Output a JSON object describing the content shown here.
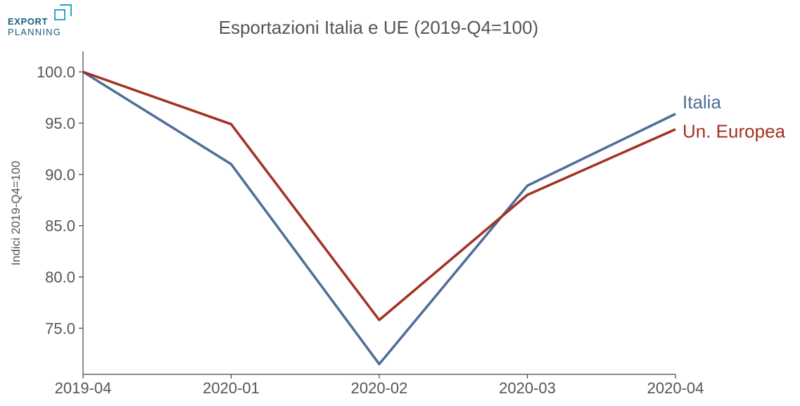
{
  "logo": {
    "line1": "EXPORT",
    "line2": "PLANNING",
    "accent": "#2aa8c4",
    "color": "#16607a"
  },
  "chart_data": {
    "type": "line",
    "title": "Esportazioni Italia e UE (2019-Q4=100)",
    "xlabel": "",
    "ylabel": "Indici 2019-Q4=100",
    "categories": [
      "2019-04",
      "2020-01",
      "2020-02",
      "2020-03",
      "2020-04"
    ],
    "ylim": [
      70.5,
      102
    ],
    "yticks": [
      75.0,
      80.0,
      85.0,
      90.0,
      95.0,
      100.0
    ],
    "ytick_labels": [
      "75.0",
      "80.0",
      "85.0",
      "90.0",
      "95.0",
      "100.0"
    ],
    "grid": false,
    "legend": "end-of-line labels",
    "series": [
      {
        "name": "Italia",
        "color": "#4e6e9a",
        "values": [
          100.0,
          91.0,
          71.5,
          88.9,
          95.9
        ]
      },
      {
        "name": "Un. Europea",
        "color": "#a33224",
        "values": [
          100.0,
          94.9,
          75.8,
          88.0,
          94.4
        ]
      }
    ]
  }
}
